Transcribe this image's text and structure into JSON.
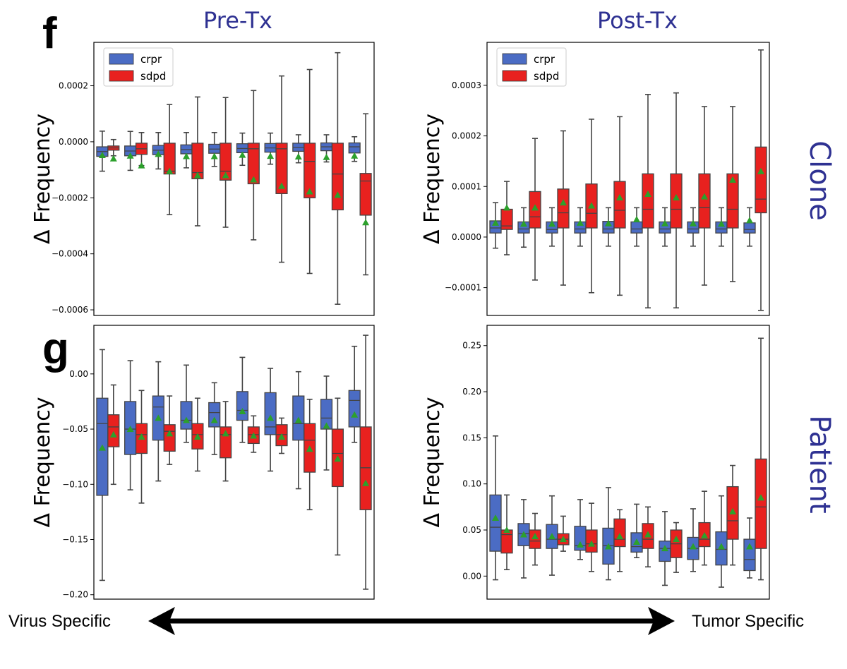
{
  "figure": {
    "panel_f_letter": "f",
    "panel_g_letter": "g",
    "col_titles": [
      "Pre-Tx",
      "Post-Tx"
    ],
    "row_titles": [
      "Clone",
      "Patient"
    ],
    "arrow_left_label": "Virus Specific",
    "arrow_right_label": "Tumor Specific",
    "colors": {
      "title": "#2e3192",
      "crpr": "#4b6cc4",
      "sdpd": "#e8211f",
      "mean_marker": "#2ca02c",
      "whisker": "#444444"
    }
  },
  "chart_data": [
    {
      "id": "clone-pre",
      "type": "box",
      "title": "Pre-Tx",
      "ylabel": "Δ Frequency",
      "ylim": [
        -0.00062,
        0.000355
      ],
      "yticks": [
        0.0002,
        0.0,
        -0.0002,
        -0.0004,
        -0.0006
      ],
      "ytick_labels": [
        "0.0002",
        "0.0000",
        "−0.0002",
        "−0.0004",
        "−0.0006"
      ],
      "legend": {
        "position": "top-left",
        "entries": [
          "crpr",
          "sdpd"
        ]
      },
      "groups": 10,
      "series": [
        {
          "name": "crpr",
          "color": "#4b6cc4",
          "boxes": [
            {
              "lo": -0.000105,
              "q1": -5.2e-05,
              "med": -3.5e-05,
              "q3": -1.8e-05,
              "hi": 3.8e-05,
              "mean": -4.8e-05
            },
            {
              "lo": -0.000102,
              "q1": -5e-05,
              "med": -3.3e-05,
              "q3": -1.5e-05,
              "hi": 3.7e-05,
              "mean": -5e-05
            },
            {
              "lo": -9.7e-05,
              "q1": -4.6e-05,
              "med": -3e-05,
              "q3": -1.3e-05,
              "hi": 3.3e-05,
              "mean": -4.4e-05
            },
            {
              "lo": -9.3e-05,
              "q1": -4.3e-05,
              "med": -2.8e-05,
              "q3": -1.1e-05,
              "hi": 3.3e-05,
              "mean": -5.2e-05
            },
            {
              "lo": -8.8e-05,
              "q1": -4.1e-05,
              "med": -2.6e-05,
              "q3": -9e-06,
              "hi": 3.3e-05,
              "mean": -5.2e-05
            },
            {
              "lo": -8.4e-05,
              "q1": -3.9e-05,
              "med": -2.4e-05,
              "q3": -7e-06,
              "hi": 3.1e-05,
              "mean": -4.7e-05
            },
            {
              "lo": -8e-05,
              "q1": -3.7e-05,
              "med": -2.2e-05,
              "q3": -6e-06,
              "hi": 3.1e-05,
              "mean": -5.1e-05
            },
            {
              "lo": -7.5e-05,
              "q1": -3.4e-05,
              "med": -2e-05,
              "q3": -5e-06,
              "hi": 2.5e-05,
              "mean": -5.3e-05
            },
            {
              "lo": -7.2e-05,
              "q1": -3.2e-05,
              "med": -1.8e-05,
              "q3": -4e-06,
              "hi": 2.5e-05,
              "mean": -5.5e-05
            },
            {
              "lo": -7e-05,
              "q1": -4e-05,
              "med": -1.8e-05,
              "q3": -4e-06,
              "hi": 1.8e-05,
              "mean": -5e-05
            }
          ]
        },
        {
          "name": "sdpd",
          "color": "#e8211f",
          "boxes": [
            {
              "lo": -5e-05,
              "q1": -3e-05,
              "med": -2.2e-05,
              "q3": -1.5e-05,
              "hi": 8e-06,
              "mean": -6e-05
            },
            {
              "lo": -8.5e-05,
              "q1": -4.5e-05,
              "med": -2.5e-05,
              "q3": -5e-06,
              "hi": 3.3e-05,
              "mean": -8.5e-05
            },
            {
              "lo": -0.00026,
              "q1": -0.000115,
              "med": -0.000105,
              "q3": -5e-06,
              "hi": 0.000133,
              "mean": -0.000105
            },
            {
              "lo": -0.0003,
              "q1": -0.000132,
              "med": -0.00011,
              "q3": -5e-06,
              "hi": 0.00016,
              "mean": -0.00012
            },
            {
              "lo": -0.000305,
              "q1": -0.000137,
              "med": -0.000105,
              "q3": -5e-06,
              "hi": 0.000158,
              "mean": -0.00012
            },
            {
              "lo": -0.00035,
              "q1": -0.00015,
              "med": -2.5e-05,
              "q3": -5e-06,
              "hi": 0.000183,
              "mean": -0.000135
            },
            {
              "lo": -0.00043,
              "q1": -0.000185,
              "med": -2.5e-05,
              "q3": -5e-06,
              "hi": 0.000235,
              "mean": -0.000158
            },
            {
              "lo": -0.00047,
              "q1": -0.0002,
              "med": -7e-05,
              "q3": -5e-06,
              "hi": 0.000258,
              "mean": -0.000178
            },
            {
              "lo": -0.00058,
              "q1": -0.000243,
              "med": -0.000115,
              "q3": -5e-06,
              "hi": 0.000318,
              "mean": -0.00019
            },
            {
              "lo": -0.000475,
              "q1": -0.000262,
              "med": -0.00014,
              "q3": -0.000113,
              "hi": 0.0001,
              "mean": -0.000288
            }
          ]
        }
      ]
    },
    {
      "id": "clone-post",
      "type": "box",
      "title": "Post-Tx",
      "ylabel": "Δ Frequency",
      "ylim": [
        -0.000155,
        0.000385
      ],
      "yticks": [
        0.0003,
        0.0002,
        0.0001,
        0.0,
        -0.0001
      ],
      "ytick_labels": [
        "0.0003",
        "0.0002",
        "0.0001",
        "0.0000",
        "−0.0001"
      ],
      "legend": {
        "position": "top-left",
        "entries": [
          "crpr",
          "sdpd"
        ]
      },
      "groups": 10,
      "series": [
        {
          "name": "crpr",
          "color": "#4b6cc4",
          "boxes": [
            {
              "lo": -2.2e-05,
              "q1": 8e-06,
              "med": 1.8e-05,
              "q3": 3.2e-05,
              "hi": 6.8e-05,
              "mean": 2.8e-05
            },
            {
              "lo": -2e-05,
              "q1": 8e-06,
              "med": 1.6e-05,
              "q3": 3e-05,
              "hi": 5.8e-05,
              "mean": 2.6e-05
            },
            {
              "lo": -1.8e-05,
              "q1": 8e-06,
              "med": 1.5e-05,
              "q3": 3e-05,
              "hi": 5.8e-05,
              "mean": 2.6e-05
            },
            {
              "lo": -1.8e-05,
              "q1": 8e-06,
              "med": 1.6e-05,
              "q3": 3e-05,
              "hi": 5.8e-05,
              "mean": 2.8e-05
            },
            {
              "lo": -1.8e-05,
              "q1": 8e-06,
              "med": 1.6e-05,
              "q3": 3.1e-05,
              "hi": 5.8e-05,
              "mean": 2.7e-05
            },
            {
              "lo": -1.8e-05,
              "q1": 8e-06,
              "med": 1.6e-05,
              "q3": 3e-05,
              "hi": 5.8e-05,
              "mean": 3.5e-05
            },
            {
              "lo": -1.8e-05,
              "q1": 8e-06,
              "med": 1.6e-05,
              "q3": 3e-05,
              "hi": 5.8e-05,
              "mean": 2.7e-05
            },
            {
              "lo": -1.8e-05,
              "q1": 8e-06,
              "med": 1.6e-05,
              "q3": 3e-05,
              "hi": 5.8e-05,
              "mean": 2.7e-05
            },
            {
              "lo": -1.8e-05,
              "q1": 8e-06,
              "med": 1.6e-05,
              "q3": 3e-05,
              "hi": 5.8e-05,
              "mean": 2.6e-05
            },
            {
              "lo": -1.8e-05,
              "q1": 8e-06,
              "med": 1.5e-05,
              "q3": 2.8e-05,
              "hi": 5.8e-05,
              "mean": 3.3e-05
            }
          ]
        },
        {
          "name": "sdpd",
          "color": "#e8211f",
          "boxes": [
            {
              "lo": -3.5e-05,
              "q1": 1.5e-05,
              "med": 2.2e-05,
              "q3": 5.5e-05,
              "hi": 0.00011,
              "mean": 5.8e-05
            },
            {
              "lo": -8.5e-05,
              "q1": 1.8e-05,
              "med": 4e-05,
              "q3": 9e-05,
              "hi": 0.000195,
              "mean": 5.8e-05
            },
            {
              "lo": -9.5e-05,
              "q1": 1.8e-05,
              "med": 4.8e-05,
              "q3": 9.5e-05,
              "hi": 0.00021,
              "mean": 6.8e-05
            },
            {
              "lo": -0.00011,
              "q1": 1.8e-05,
              "med": 4.7e-05,
              "q3": 0.000105,
              "hi": 0.000233,
              "mean": 6.2e-05
            },
            {
              "lo": -0.000115,
              "q1": 1.8e-05,
              "med": 5.3e-05,
              "q3": 0.00011,
              "hi": 0.000238,
              "mean": 7.8e-05
            },
            {
              "lo": -0.00014,
              "q1": 1.8e-05,
              "med": 5.5e-05,
              "q3": 0.000125,
              "hi": 0.000282,
              "mean": 8.5e-05
            },
            {
              "lo": -0.00014,
              "q1": 1.8e-05,
              "med": 5.5e-05,
              "q3": 0.000125,
              "hi": 0.000285,
              "mean": 7.8e-05
            },
            {
              "lo": -9.5e-05,
              "q1": 1.8e-05,
              "med": 5.8e-05,
              "q3": 0.000125,
              "hi": 0.000258,
              "mean": 8e-05
            },
            {
              "lo": -8.8e-05,
              "q1": 1.8e-05,
              "med": 5.5e-05,
              "q3": 0.000125,
              "hi": 0.000258,
              "mean": 0.000113
            },
            {
              "lo": -0.000145,
              "q1": 4.8e-05,
              "med": 7.5e-05,
              "q3": 0.000178,
              "hi": 0.00037,
              "mean": 0.00013
            }
          ]
        }
      ]
    },
    {
      "id": "patient-pre",
      "type": "box",
      "title": "Pre-Tx",
      "ylabel": "Δ Frequency",
      "ylim": [
        -0.204,
        0.044
      ],
      "yticks": [
        0.0,
        -0.05,
        -0.1,
        -0.15,
        -0.2
      ],
      "ytick_labels": [
        "0.00",
        "−0.05",
        "−0.10",
        "−0.15",
        "−0.20"
      ],
      "groups": 10,
      "series": [
        {
          "name": "crpr",
          "color": "#4b6cc4",
          "boxes": [
            {
              "lo": -0.187,
              "q1": -0.11,
              "med": -0.045,
              "q3": -0.022,
              "hi": 0.022,
              "mean": -0.067
            },
            {
              "lo": -0.105,
              "q1": -0.073,
              "med": -0.05,
              "q3": -0.025,
              "hi": 0.012,
              "mean": -0.05
            },
            {
              "lo": -0.097,
              "q1": -0.06,
              "med": -0.03,
              "q3": -0.02,
              "hi": 0.011,
              "mean": -0.04
            },
            {
              "lo": -0.062,
              "q1": -0.05,
              "med": -0.042,
              "q3": -0.025,
              "hi": 0.008,
              "mean": -0.042
            },
            {
              "lo": -0.073,
              "q1": -0.048,
              "med": -0.035,
              "q3": -0.026,
              "hi": -0.008,
              "mean": -0.042
            },
            {
              "lo": -0.062,
              "q1": -0.042,
              "med": -0.033,
              "q3": -0.016,
              "hi": 0.015,
              "mean": -0.034
            },
            {
              "lo": -0.088,
              "q1": -0.055,
              "med": -0.048,
              "q3": -0.017,
              "hi": 0.005,
              "mean": -0.04
            },
            {
              "lo": -0.104,
              "q1": -0.06,
              "med": -0.045,
              "q3": -0.02,
              "hi": 0.002,
              "mean": -0.042
            },
            {
              "lo": -0.087,
              "q1": -0.05,
              "med": -0.04,
              "q3": -0.023,
              "hi": -0.002,
              "mean": -0.047
            },
            {
              "lo": -0.062,
              "q1": -0.048,
              "med": -0.024,
              "q3": -0.015,
              "hi": 0.025,
              "mean": -0.037
            }
          ]
        },
        {
          "name": "sdpd",
          "color": "#e8211f",
          "boxes": [
            {
              "lo": -0.1,
              "q1": -0.066,
              "med": -0.048,
              "q3": -0.037,
              "hi": -0.01,
              "mean": -0.055
            },
            {
              "lo": -0.117,
              "q1": -0.072,
              "med": -0.055,
              "q3": -0.045,
              "hi": -0.015,
              "mean": -0.057
            },
            {
              "lo": -0.082,
              "q1": -0.07,
              "med": -0.052,
              "q3": -0.046,
              "hi": -0.02,
              "mean": -0.054
            },
            {
              "lo": -0.088,
              "q1": -0.068,
              "med": -0.055,
              "q3": -0.045,
              "hi": -0.022,
              "mean": -0.057
            },
            {
              "lo": -0.097,
              "q1": -0.076,
              "med": -0.055,
              "q3": -0.048,
              "hi": -0.025,
              "mean": -0.054
            },
            {
              "lo": -0.071,
              "q1": -0.063,
              "med": -0.055,
              "q3": -0.048,
              "hi": -0.038,
              "mean": -0.056
            },
            {
              "lo": -0.072,
              "q1": -0.065,
              "med": -0.055,
              "q3": -0.046,
              "hi": -0.04,
              "mean": -0.057
            },
            {
              "lo": -0.123,
              "q1": -0.089,
              "med": -0.06,
              "q3": -0.045,
              "hi": -0.023,
              "mean": -0.068
            },
            {
              "lo": -0.164,
              "q1": -0.102,
              "med": -0.072,
              "q3": -0.05,
              "hi": -0.022,
              "mean": -0.077
            },
            {
              "lo": -0.195,
              "q1": -0.123,
              "med": -0.085,
              "q3": -0.048,
              "hi": 0.035,
              "mean": -0.099
            }
          ]
        }
      ]
    },
    {
      "id": "patient-post",
      "type": "box",
      "title": "Post-Tx",
      "ylabel": "Δ Frequency",
      "ylim": [
        -0.025,
        0.272
      ],
      "yticks": [
        0.25,
        0.2,
        0.15,
        0.1,
        0.05,
        0.0
      ],
      "ytick_labels": [
        "0.25",
        "0.20",
        "0.15",
        "0.10",
        "0.05",
        "0.00"
      ],
      "groups": 10,
      "series": [
        {
          "name": "crpr",
          "color": "#4b6cc4",
          "boxes": [
            {
              "lo": -0.004,
              "q1": 0.027,
              "med": 0.053,
              "q3": 0.088,
              "hi": 0.152,
              "mean": 0.063
            },
            {
              "lo": -0.002,
              "q1": 0.033,
              "med": 0.046,
              "q3": 0.057,
              "hi": 0.083,
              "mean": 0.045
            },
            {
              "lo": 0.001,
              "q1": 0.03,
              "med": 0.04,
              "q3": 0.056,
              "hi": 0.087,
              "mean": 0.043
            },
            {
              "lo": 0.018,
              "q1": 0.028,
              "med": 0.033,
              "q3": 0.054,
              "hi": 0.083,
              "mean": 0.034
            },
            {
              "lo": -0.004,
              "q1": 0.013,
              "med": 0.033,
              "q3": 0.052,
              "hi": 0.096,
              "mean": 0.032
            },
            {
              "lo": 0.02,
              "q1": 0.026,
              "med": 0.032,
              "q3": 0.047,
              "hi": 0.078,
              "mean": 0.037
            },
            {
              "lo": -0.01,
              "q1": 0.016,
              "med": 0.03,
              "q3": 0.038,
              "hi": 0.07,
              "mean": 0.03
            },
            {
              "lo": 0.005,
              "q1": 0.018,
              "med": 0.03,
              "q3": 0.042,
              "hi": 0.073,
              "mean": 0.032
            },
            {
              "lo": -0.012,
              "q1": 0.012,
              "med": 0.029,
              "q3": 0.048,
              "hi": 0.087,
              "mean": 0.032
            },
            {
              "lo": -0.002,
              "q1": 0.006,
              "med": 0.018,
              "q3": 0.04,
              "hi": 0.063,
              "mean": 0.032
            }
          ]
        },
        {
          "name": "sdpd",
          "color": "#e8211f",
          "boxes": [
            {
              "lo": 0.007,
              "q1": 0.025,
              "med": 0.045,
              "q3": 0.05,
              "hi": 0.088,
              "mean": 0.05
            },
            {
              "lo": 0.012,
              "q1": 0.03,
              "med": 0.038,
              "q3": 0.05,
              "hi": 0.068,
              "mean": 0.043
            },
            {
              "lo": 0.027,
              "q1": 0.034,
              "med": 0.04,
              "q3": 0.046,
              "hi": 0.065,
              "mean": 0.04
            },
            {
              "lo": 0.005,
              "q1": 0.026,
              "med": 0.035,
              "q3": 0.05,
              "hi": 0.079,
              "mean": 0.035
            },
            {
              "lo": 0.005,
              "q1": 0.032,
              "med": 0.04,
              "q3": 0.062,
              "hi": 0.072,
              "mean": 0.043
            },
            {
              "lo": 0.01,
              "q1": 0.03,
              "med": 0.04,
              "q3": 0.057,
              "hi": 0.075,
              "mean": 0.045
            },
            {
              "lo": 0.004,
              "q1": 0.02,
              "med": 0.035,
              "q3": 0.05,
              "hi": 0.058,
              "mean": 0.04
            },
            {
              "lo": 0.012,
              "q1": 0.032,
              "med": 0.04,
              "q3": 0.058,
              "hi": 0.092,
              "mean": 0.044
            },
            {
              "lo": 0.012,
              "q1": 0.04,
              "med": 0.06,
              "q3": 0.097,
              "hi": 0.12,
              "mean": 0.07
            },
            {
              "lo": -0.004,
              "q1": 0.03,
              "med": 0.075,
              "q3": 0.127,
              "hi": 0.258,
              "mean": 0.085
            }
          ]
        }
      ]
    }
  ]
}
